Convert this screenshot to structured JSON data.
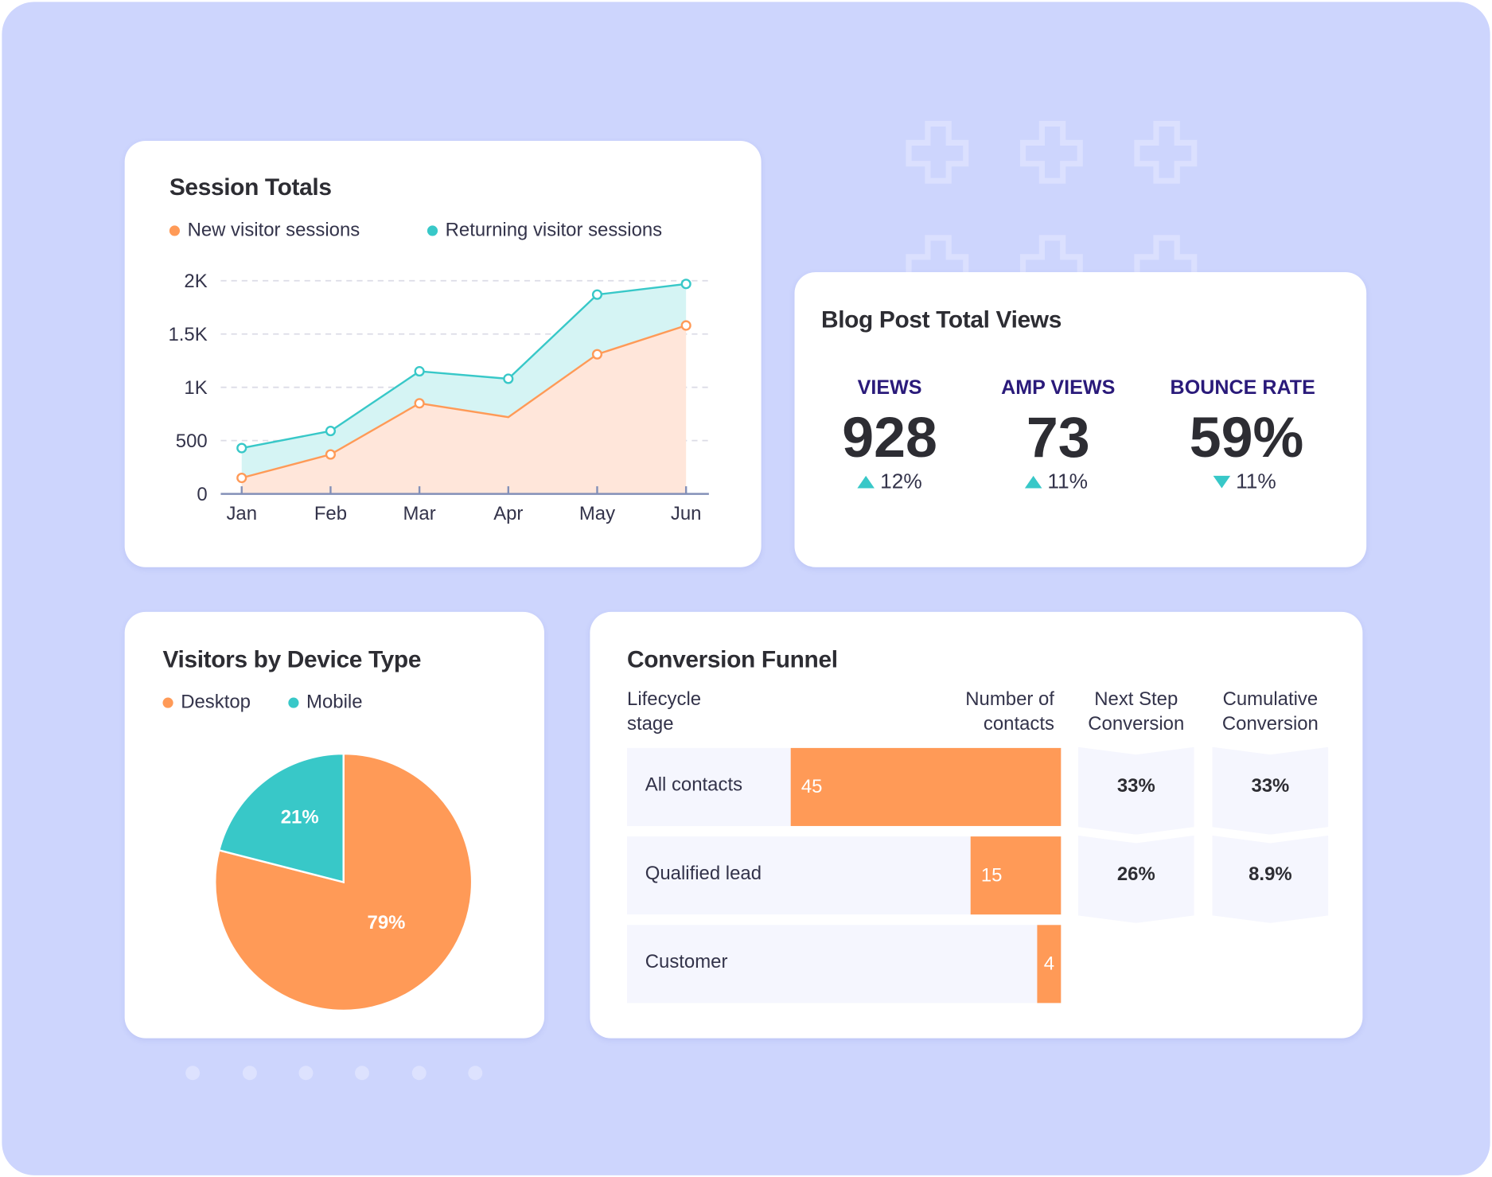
{
  "colors": {
    "background": "#cdd5fd",
    "new": "#ff9a57",
    "returning": "#38c8c8",
    "kpi_label": "#2a1a7a"
  },
  "session_totals": {
    "title": "Session Totals",
    "legend": [
      "New visitor sessions",
      "Returning visitor sessions"
    ],
    "y_ticks": [
      "2K",
      "1.5K",
      "1K",
      "500",
      "0"
    ],
    "x_ticks": [
      "Jan",
      "Feb",
      "Mar",
      "Apr",
      "May",
      "Jun"
    ]
  },
  "chart_data": [
    {
      "type": "area",
      "categories": [
        "Jan",
        "Feb",
        "Mar",
        "Apr",
        "May",
        "Jun"
      ],
      "series": [
        {
          "name": "New visitor sessions",
          "values": [
            150,
            370,
            850,
            720,
            1310,
            1580
          ]
        },
        {
          "name": "Returning visitor sessions",
          "values": [
            430,
            590,
            1150,
            1080,
            1870,
            1970
          ]
        }
      ],
      "ylim": [
        0,
        2000
      ],
      "y_ticks": [
        0,
        500,
        1000,
        1500,
        2000
      ],
      "grid": true,
      "legend": "top"
    },
    {
      "type": "pie",
      "title": "Visitors by Device Type",
      "categories": [
        "Desktop",
        "Mobile"
      ],
      "values": [
        79,
        21
      ],
      "labels": [
        "79%",
        "21%"
      ],
      "legend": "top-left"
    }
  ],
  "blog": {
    "title": "Blog Post Total Views",
    "kpis": [
      {
        "label": "VIEWS",
        "value": "928",
        "delta": "12%",
        "direction": "up"
      },
      {
        "label": "AMP VIEWS",
        "value": "73",
        "delta": "11%",
        "direction": "up"
      },
      {
        "label": "BOUNCE RATE",
        "value": "59%",
        "delta": "11%",
        "direction": "down"
      }
    ]
  },
  "device": {
    "title": "Visitors by Device Type",
    "legend": [
      "Desktop",
      "Mobile"
    ],
    "labels": {
      "desktop": "79%",
      "mobile": "21%"
    }
  },
  "funnel": {
    "title": "Conversion Funnel",
    "headers": {
      "stage": "Lifecycle stage",
      "contacts": "Number of contacts",
      "next": "Next Step Conversion",
      "cumulative": "Cumulative Conversion"
    },
    "rows": [
      {
        "stage": "All contacts",
        "contacts": 45,
        "next": "33%",
        "cumulative": "33%"
      },
      {
        "stage": "Qualified lead",
        "contacts": 15,
        "next": "26%",
        "cumulative": "8.9%"
      },
      {
        "stage": "Customer",
        "contacts": 4
      }
    ]
  }
}
